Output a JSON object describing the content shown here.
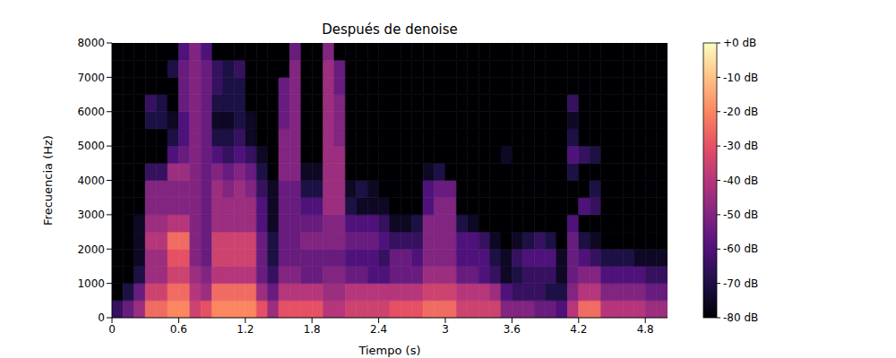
{
  "chart_data": {
    "type": "heatmap",
    "title": "Después de denoise",
    "x_label": "Tiempo (s)",
    "y_label": "Frecuencia (Hz)",
    "color": "magma",
    "xlim": [
      0,
      5
    ],
    "xticks": [
      0,
      0.6,
      1.2,
      1.8,
      2.4,
      3,
      3.6,
      4.2,
      4.8
    ],
    "ylim": [
      0,
      8000
    ],
    "yticks": [
      0,
      1000,
      2000,
      3000,
      4000,
      5000,
      6000,
      7000,
      8000
    ],
    "x_bins": [
      0,
      0.1,
      0.2,
      0.3,
      0.4,
      0.5,
      0.6,
      0.7,
      0.8,
      0.9,
      1,
      1.1,
      1.2,
      1.3,
      1.4,
      1.5,
      1.6,
      1.7,
      1.8,
      1.9,
      2,
      2.1,
      2.2,
      2.3,
      2.4,
      2.5,
      2.6,
      2.7,
      2.8,
      2.9,
      3,
      3.1,
      3.2,
      3.3,
      3.4,
      3.5,
      3.6,
      3.7,
      3.8,
      3.9,
      4,
      4.1,
      4.2,
      4.3,
      4.4,
      4.5,
      4.6,
      4.7,
      4.8,
      4.9,
      5
    ],
    "y_bins": [
      0,
      500,
      1000,
      1500,
      2000,
      2500,
      3000,
      3500,
      4000,
      4500,
      5000,
      5500,
      6000,
      6500,
      7000,
      7500,
      8000
    ],
    "values": [
      [
        -65,
        -55,
        -45,
        -25,
        -25,
        -20,
        -20,
        -35,
        -30,
        -20,
        -20,
        -20,
        -20,
        -30,
        -45,
        -30,
        -30,
        -30,
        -30,
        -40,
        -40,
        -35,
        -35,
        -35,
        -35,
        -30,
        -30,
        -30,
        -25,
        -25,
        -25,
        -35,
        -35,
        -35,
        -35,
        -50,
        -50,
        -50,
        -55,
        -55,
        -60,
        -40,
        -25,
        -25,
        -40,
        -40,
        -40,
        -40,
        -45,
        -45
      ],
      [
        -80,
        -70,
        -55,
        -35,
        -35,
        -25,
        -25,
        -40,
        -45,
        -25,
        -25,
        -25,
        -25,
        -45,
        -55,
        -40,
        -40,
        -40,
        -40,
        -45,
        -45,
        -40,
        -40,
        -40,
        -40,
        -40,
        -40,
        -40,
        -35,
        -35,
        -35,
        -40,
        -40,
        -40,
        -45,
        -60,
        -65,
        -65,
        -65,
        -70,
        -70,
        -50,
        -40,
        -40,
        -50,
        -50,
        -50,
        -50,
        -55,
        -55
      ],
      [
        -80,
        -80,
        -70,
        -45,
        -45,
        -35,
        -35,
        -45,
        -50,
        -40,
        -40,
        -40,
        -40,
        -55,
        -65,
        -50,
        -50,
        -55,
        -55,
        -50,
        -50,
        -55,
        -55,
        -60,
        -60,
        -55,
        -55,
        -55,
        -45,
        -45,
        -45,
        -55,
        -55,
        -60,
        -65,
        -75,
        -70,
        -65,
        -65,
        -65,
        -75,
        -55,
        -50,
        -50,
        -60,
        -60,
        -60,
        -60,
        -65,
        -65
      ],
      [
        -80,
        -80,
        -75,
        -45,
        -45,
        -30,
        -30,
        -50,
        -55,
        -35,
        -35,
        -35,
        -35,
        -55,
        -70,
        -55,
        -55,
        -55,
        -55,
        -55,
        -55,
        -60,
        -60,
        -60,
        -65,
        -55,
        -55,
        -60,
        -50,
        -50,
        -50,
        -60,
        -60,
        -60,
        -70,
        -75,
        -65,
        -60,
        -60,
        -60,
        -75,
        -55,
        -60,
        -65,
        -70,
        -70,
        -70,
        -75,
        -75,
        -75
      ],
      [
        -80,
        -80,
        -75,
        -40,
        -40,
        -25,
        -25,
        -50,
        -55,
        -35,
        -35,
        -35,
        -35,
        -55,
        -70,
        -55,
        -55,
        -50,
        -50,
        -50,
        -50,
        -55,
        -55,
        -55,
        -60,
        -65,
        -65,
        -65,
        -50,
        -50,
        -50,
        -60,
        -60,
        -65,
        -75,
        -80,
        -75,
        -70,
        -65,
        -70,
        -80,
        -55,
        -70,
        -75,
        -80,
        -80,
        -80,
        -80,
        -80,
        -80
      ],
      [
        -80,
        -80,
        -75,
        -45,
        -45,
        -40,
        -40,
        -50,
        -55,
        -45,
        -45,
        -45,
        -45,
        -60,
        -75,
        -55,
        -55,
        -55,
        -55,
        -50,
        -50,
        -60,
        -60,
        -60,
        -65,
        -75,
        -75,
        -70,
        -50,
        -50,
        -50,
        -70,
        -75,
        -80,
        -80,
        -80,
        -80,
        -80,
        -80,
        -80,
        -80,
        -60,
        -80,
        -80,
        -80,
        -80,
        -80,
        -80,
        -80,
        -80
      ],
      [
        -80,
        -80,
        -80,
        -50,
        -50,
        -50,
        -50,
        -50,
        -55,
        -45,
        -45,
        -45,
        -45,
        -60,
        -75,
        -55,
        -55,
        -60,
        -60,
        -45,
        -45,
        -70,
        -75,
        -75,
        -75,
        -80,
        -80,
        -80,
        -60,
        -50,
        -50,
        -80,
        -80,
        -80,
        -80,
        -80,
        -80,
        -80,
        -80,
        -80,
        -80,
        -80,
        -60,
        -65,
        -80,
        -80,
        -80,
        -80,
        -80,
        -80
      ],
      [
        -80,
        -80,
        -80,
        -50,
        -50,
        -50,
        -50,
        -50,
        -55,
        -45,
        -50,
        -45,
        -50,
        -65,
        -75,
        -55,
        -55,
        -70,
        -70,
        -45,
        -45,
        -75,
        -70,
        -75,
        -80,
        -80,
        -80,
        -80,
        -60,
        -55,
        -55,
        -80,
        -80,
        -80,
        -80,
        -80,
        -80,
        -80,
        -80,
        -80,
        -80,
        -80,
        -80,
        -70,
        -80,
        -80,
        -80,
        -80,
        -80,
        -80
      ],
      [
        -80,
        -80,
        -80,
        -65,
        -65,
        -45,
        -45,
        -50,
        -55,
        -50,
        -55,
        -50,
        -55,
        -70,
        -80,
        -50,
        -50,
        -75,
        -75,
        -45,
        -45,
        -80,
        -80,
        -80,
        -80,
        -80,
        -80,
        -80,
        -75,
        -70,
        -80,
        -80,
        -80,
        -80,
        -80,
        -80,
        -80,
        -80,
        -80,
        -80,
        -80,
        -70,
        -80,
        -80,
        -80,
        -80,
        -80,
        -80,
        -80,
        -80
      ],
      [
        -80,
        -80,
        -80,
        -80,
        -80,
        -60,
        -55,
        -50,
        -55,
        -60,
        -65,
        -60,
        -65,
        -75,
        -80,
        -50,
        -50,
        -80,
        -80,
        -45,
        -45,
        -80,
        -80,
        -80,
        -80,
        -80,
        -80,
        -80,
        -80,
        -80,
        -80,
        -80,
        -80,
        -80,
        -80,
        -75,
        -80,
        -80,
        -80,
        -80,
        -80,
        -60,
        -65,
        -70,
        -80,
        -80,
        -80,
        -80,
        -80,
        -80
      ],
      [
        -80,
        -80,
        -80,
        -80,
        -80,
        -70,
        -60,
        -50,
        -55,
        -70,
        -70,
        -65,
        -75,
        -80,
        -80,
        -50,
        -50,
        -80,
        -80,
        -45,
        -50,
        -80,
        -80,
        -80,
        -80,
        -80,
        -80,
        -80,
        -80,
        -80,
        -80,
        -80,
        -80,
        -80,
        -80,
        -80,
        -80,
        -80,
        -80,
        -80,
        -80,
        -70,
        -80,
        -80,
        -80,
        -80,
        -80,
        -80,
        -80,
        -80
      ],
      [
        -80,
        -80,
        -80,
        -70,
        -70,
        -75,
        -60,
        -50,
        -55,
        -75,
        -75,
        -70,
        -75,
        -80,
        -80,
        -55,
        -50,
        -80,
        -80,
        -45,
        -50,
        -80,
        -80,
        -80,
        -80,
        -80,
        -80,
        -80,
        -80,
        -80,
        -80,
        -80,
        -80,
        -80,
        -80,
        -80,
        -80,
        -80,
        -80,
        -80,
        -80,
        -75,
        -80,
        -80,
        -80,
        -80,
        -80,
        -80,
        -80,
        -80
      ],
      [
        -80,
        -80,
        -80,
        -65,
        -70,
        -80,
        -55,
        -50,
        -55,
        -70,
        -70,
        -70,
        -80,
        -80,
        -80,
        -55,
        -50,
        -80,
        -80,
        -45,
        -50,
        -80,
        -80,
        -80,
        -80,
        -80,
        -80,
        -80,
        -80,
        -80,
        -80,
        -80,
        -80,
        -80,
        -80,
        -80,
        -80,
        -80,
        -80,
        -80,
        -80,
        -65,
        -80,
        -80,
        -80,
        -80,
        -80,
        -80,
        -80,
        -80
      ],
      [
        -80,
        -80,
        -80,
        -80,
        -80,
        -80,
        -55,
        -50,
        -55,
        -65,
        -70,
        -70,
        -80,
        -80,
        -80,
        -55,
        -50,
        -80,
        -80,
        -45,
        -55,
        -80,
        -80,
        -80,
        -80,
        -80,
        -80,
        -80,
        -80,
        -80,
        -80,
        -80,
        -80,
        -80,
        -80,
        -80,
        -80,
        -80,
        -80,
        -80,
        -80,
        -80,
        -80,
        -80,
        -80,
        -80,
        -80,
        -80,
        -80,
        -80
      ],
      [
        -80,
        -80,
        -80,
        -80,
        -80,
        -70,
        -55,
        -50,
        -55,
        -65,
        -70,
        -65,
        -80,
        -80,
        -80,
        -80,
        -50,
        -80,
        -80,
        -45,
        -55,
        -80,
        -80,
        -80,
        -80,
        -80,
        -80,
        -80,
        -80,
        -80,
        -80,
        -80,
        -80,
        -80,
        -80,
        -80,
        -80,
        -80,
        -80,
        -80,
        -80,
        -80,
        -80,
        -80,
        -80,
        -80,
        -80,
        -80,
        -80,
        -80
      ],
      [
        -80,
        -80,
        -80,
        -80,
        -80,
        -80,
        -60,
        -50,
        -60,
        -80,
        -80,
        -80,
        -80,
        -80,
        -80,
        -80,
        -55,
        -80,
        -80,
        -50,
        -80,
        -80,
        -80,
        -80,
        -80,
        -80,
        -80,
        -80,
        -80,
        -80,
        -80,
        -80,
        -80,
        -80,
        -80,
        -80,
        -80,
        -80,
        -80,
        -80,
        -80,
        -80,
        -80,
        -80,
        -80,
        -80,
        -80,
        -80,
        -80,
        -80
      ]
    ],
    "colorbar": {
      "range": [
        -80,
        0
      ],
      "ticks": [
        {
          "value": 0,
          "label": "+0 dB"
        },
        {
          "value": -10,
          "label": "-10 dB"
        },
        {
          "value": -20,
          "label": "-20 dB"
        },
        {
          "value": -30,
          "label": "-30 dB"
        },
        {
          "value": -40,
          "label": "-40 dB"
        },
        {
          "value": -50,
          "label": "-50 dB"
        },
        {
          "value": -60,
          "label": "-60 dB"
        },
        {
          "value": -70,
          "label": "-70 dB"
        },
        {
          "value": -80,
          "label": "-80 dB"
        }
      ]
    }
  }
}
